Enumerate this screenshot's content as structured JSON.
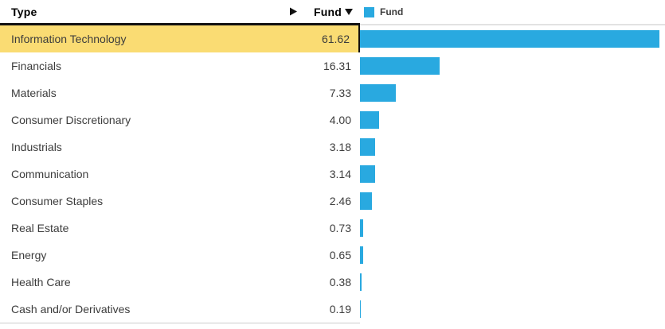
{
  "table": {
    "type_column_label": "Type",
    "fund_column_label": "Fund",
    "rows": [
      {
        "label": "Information Technology",
        "value": "61.62",
        "highlighted": true
      },
      {
        "label": "Financials",
        "value": "16.31",
        "highlighted": false
      },
      {
        "label": "Materials",
        "value": "7.33",
        "highlighted": false
      },
      {
        "label": "Consumer Discretionary",
        "value": "4.00",
        "highlighted": false
      },
      {
        "label": "Industrials",
        "value": "3.18",
        "highlighted": false
      },
      {
        "label": "Communication",
        "value": "3.14",
        "highlighted": false
      },
      {
        "label": "Consumer Staples",
        "value": "2.46",
        "highlighted": false
      },
      {
        "label": "Real Estate",
        "value": "0.73",
        "highlighted": false
      },
      {
        "label": "Energy",
        "value": "0.65",
        "highlighted": false
      },
      {
        "label": "Health Care",
        "value": "0.38",
        "highlighted": false
      },
      {
        "label": "Cash and/or Derivatives",
        "value": "0.19",
        "highlighted": false
      }
    ]
  },
  "legend": {
    "label": "Fund"
  },
  "icons": {
    "expand_arrow": "right-pointing-triangle",
    "sort_indicator": "down-pointing-triangle"
  },
  "colors": {
    "bar": "#29A9E0",
    "highlight": "#FADC73",
    "header_line": "#111111",
    "chart_top_line": "#E2E2E2"
  },
  "chart_data": {
    "type": "bar",
    "orientation": "horizontal",
    "title": "",
    "xlabel": "",
    "ylabel": "Type",
    "categories": [
      "Information Technology",
      "Financials",
      "Materials",
      "Consumer Discretionary",
      "Industrials",
      "Communication",
      "Consumer Staples",
      "Real Estate",
      "Energy",
      "Health Care",
      "Cash and/or Derivatives"
    ],
    "series": [
      {
        "name": "Fund",
        "values": [
          61.62,
          16.31,
          7.33,
          4.0,
          3.18,
          3.14,
          2.46,
          0.73,
          0.65,
          0.38,
          0.19
        ]
      }
    ],
    "xlim": [
      0,
      61.62
    ],
    "grid": false,
    "legend_position": "top",
    "bar_color": "#29A9E0",
    "highlighted_category": "Information Technology"
  }
}
